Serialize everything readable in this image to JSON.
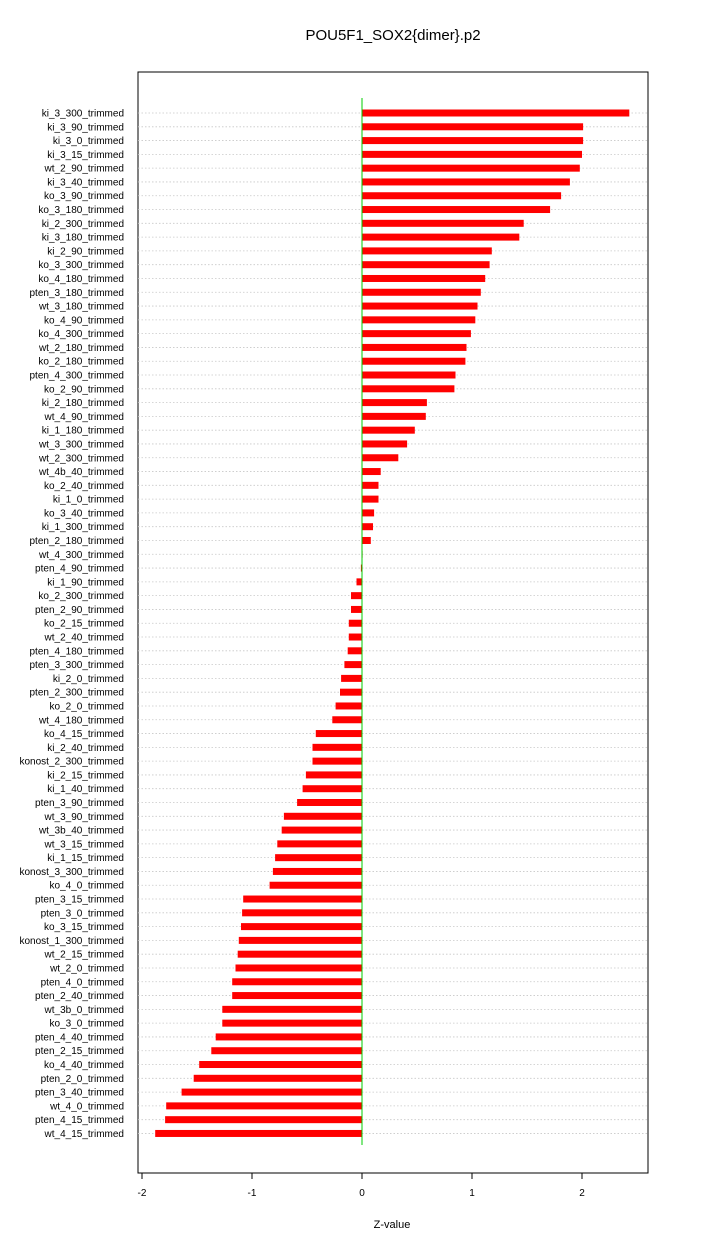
{
  "chart_data": {
    "type": "bar",
    "orientation": "horizontal",
    "title": "POU5F1_SOX2{dimer}.p2",
    "xlabel": "Z-value",
    "ylabel": "",
    "xlim": [
      -2.05,
      2.6
    ],
    "xticks": [
      -2,
      -1,
      0,
      1,
      2
    ],
    "grid": "horizontal dotted",
    "bar_color": "#ff0000",
    "zero_line_color": "#00cc00",
    "categories": [
      "ki_3_300_trimmed",
      "ki_3_90_trimmed",
      "ki_3_0_trimmed",
      "ki_3_15_trimmed",
      "wt_2_90_trimmed",
      "ki_3_40_trimmed",
      "ko_3_90_trimmed",
      "ko_3_180_trimmed",
      "ki_2_300_trimmed",
      "ki_3_180_trimmed",
      "ki_2_90_trimmed",
      "ko_3_300_trimmed",
      "ko_4_180_trimmed",
      "pten_3_180_trimmed",
      "wt_3_180_trimmed",
      "ko_4_90_trimmed",
      "ko_4_300_trimmed",
      "wt_2_180_trimmed",
      "ko_2_180_trimmed",
      "pten_4_300_trimmed",
      "ko_2_90_trimmed",
      "ki_2_180_trimmed",
      "wt_4_90_trimmed",
      "ki_1_180_trimmed",
      "wt_3_300_trimmed",
      "wt_2_300_trimmed",
      "wt_4b_40_trimmed",
      "ko_2_40_trimmed",
      "ki_1_0_trimmed",
      "ko_3_40_trimmed",
      "ki_1_300_trimmed",
      "pten_2_180_trimmed",
      "wt_4_300_trimmed",
      "pten_4_90_trimmed",
      "ki_1_90_trimmed",
      "ko_2_300_trimmed",
      "pten_2_90_trimmed",
      "ko_2_15_trimmed",
      "wt_2_40_trimmed",
      "pten_4_180_trimmed",
      "pten_3_300_trimmed",
      "ki_2_0_trimmed",
      "pten_2_300_trimmed",
      "ko_2_0_trimmed",
      "wt_4_180_trimmed",
      "ko_4_15_trimmed",
      "ki_2_40_trimmed",
      "konost_2_300_trimmed",
      "ki_2_15_trimmed",
      "ki_1_40_trimmed",
      "pten_3_90_trimmed",
      "wt_3_90_trimmed",
      "wt_3b_40_trimmed",
      "wt_3_15_trimmed",
      "ki_1_15_trimmed",
      "konost_3_300_trimmed",
      "ko_4_0_trimmed",
      "pten_3_15_trimmed",
      "pten_3_0_trimmed",
      "ko_3_15_trimmed",
      "konost_1_300_trimmed",
      "wt_2_15_trimmed",
      "wt_2_0_trimmed",
      "pten_4_0_trimmed",
      "pten_2_40_trimmed",
      "wt_3b_0_trimmed",
      "ko_3_0_trimmed",
      "pten_4_40_trimmed",
      "pten_2_15_trimmed",
      "ko_4_40_trimmed",
      "pten_2_0_trimmed",
      "pten_3_40_trimmed",
      "wt_4_0_trimmed",
      "pten_4_15_trimmed",
      "wt_4_15_trimmed"
    ],
    "values": [
      2.43,
      2.01,
      2.01,
      2.0,
      1.98,
      1.89,
      1.81,
      1.71,
      1.47,
      1.43,
      1.18,
      1.16,
      1.12,
      1.08,
      1.05,
      1.03,
      0.99,
      0.95,
      0.94,
      0.85,
      0.84,
      0.59,
      0.58,
      0.48,
      0.41,
      0.33,
      0.17,
      0.15,
      0.15,
      0.11,
      0.1,
      0.08,
      0.0,
      -0.01,
      -0.05,
      -0.1,
      -0.1,
      -0.12,
      -0.12,
      -0.13,
      -0.16,
      -0.19,
      -0.2,
      -0.24,
      -0.27,
      -0.42,
      -0.45,
      -0.45,
      -0.51,
      -0.54,
      -0.59,
      -0.71,
      -0.73,
      -0.77,
      -0.79,
      -0.81,
      -0.84,
      -1.08,
      -1.09,
      -1.1,
      -1.12,
      -1.13,
      -1.15,
      -1.18,
      -1.18,
      -1.27,
      -1.27,
      -1.33,
      -1.37,
      -1.48,
      -1.53,
      -1.64,
      -1.78,
      -1.79,
      -1.88
    ]
  }
}
